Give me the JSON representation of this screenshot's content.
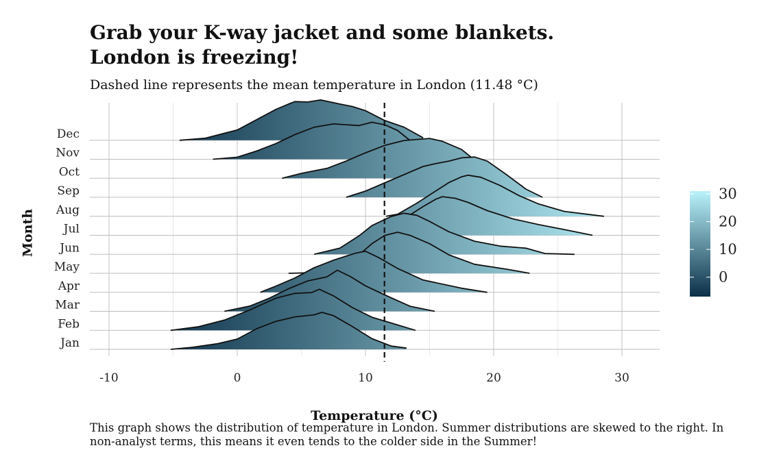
{
  "title_line1": "Grab your K-way jacket and some blankets.",
  "title_line2": "London is freezing!",
  "subtitle": "Dashed line represents the mean temperature in London (11.48 °C)",
  "caption": "This graph shows the distribution of temperature in London. Summer distributions are skewed to the right. In non-analyst terms, this means it even tends to the colder side in the Summer!",
  "chart_data": {
    "type": "ridgeline",
    "title": "Grab your K-way jacket and some blankets. London is freezing!",
    "subtitle": "Dashed line represents the mean temperature in London (11.48 °C)",
    "xlabel": "Temperature (°C)",
    "ylabel": "Month",
    "xlim": [
      -12,
      33
    ],
    "x_ticks": [
      -10,
      0,
      10,
      20,
      30
    ],
    "x_tick_labels": [
      "-10",
      "0",
      "10",
      "20",
      "30"
    ],
    "mean_line": 11.48,
    "grid": true,
    "legend": {
      "position": "right",
      "ticks": [
        0,
        10,
        20,
        30
      ],
      "tick_labels": [
        "0",
        "10",
        "20",
        "30"
      ],
      "range": [
        -7,
        31
      ],
      "colors": [
        "#0b2f47",
        "#b9f3fb"
      ]
    },
    "categories": [
      "Jan",
      "Feb",
      "Mar",
      "Apr",
      "May",
      "Jun",
      "Jul",
      "Aug",
      "Sep",
      "Oct",
      "Nov",
      "Dec"
    ],
    "series": [
      {
        "name": "Jan",
        "density": [
          [
            -5.2,
            0
          ],
          [
            -3.5,
            0.05
          ],
          [
            -1.5,
            0.14
          ],
          [
            0,
            0.25
          ],
          [
            1.5,
            0.5
          ],
          [
            3,
            0.68
          ],
          [
            4.5,
            0.79
          ],
          [
            6,
            0.84
          ],
          [
            6.6,
            0.9
          ],
          [
            7.5,
            0.82
          ],
          [
            9,
            0.55
          ],
          [
            10.5,
            0.26
          ],
          [
            12,
            0.08
          ],
          [
            13.2,
            0.03
          ]
        ]
      },
      {
        "name": "Feb",
        "density": [
          [
            -5.2,
            0
          ],
          [
            -3,
            0.09
          ],
          [
            -1,
            0.25
          ],
          [
            1,
            0.5
          ],
          [
            3,
            0.78
          ],
          [
            4.5,
            0.9
          ],
          [
            5.8,
            0.92
          ],
          [
            6.4,
            1.0
          ],
          [
            7.5,
            0.84
          ],
          [
            9,
            0.55
          ],
          [
            10.5,
            0.32
          ],
          [
            12.5,
            0.13
          ],
          [
            13.9,
            0
          ]
        ]
      },
      {
        "name": "Mar",
        "density": [
          [
            -1,
            0
          ],
          [
            1,
            0.13
          ],
          [
            2.5,
            0.32
          ],
          [
            4,
            0.55
          ],
          [
            5.5,
            0.74
          ],
          [
            7,
            0.84
          ],
          [
            7.8,
            1.0
          ],
          [
            8.8,
            0.85
          ],
          [
            10,
            0.62
          ],
          [
            11.5,
            0.4
          ],
          [
            13.5,
            0.12
          ],
          [
            15.4,
            0
          ]
        ]
      },
      {
        "name": "Apr",
        "density": [
          [
            1.8,
            0
          ],
          [
            3,
            0.15
          ],
          [
            4.5,
            0.35
          ],
          [
            6,
            0.6
          ],
          [
            7.5,
            0.78
          ],
          [
            8.5,
            0.88
          ],
          [
            9.2,
            0.95
          ],
          [
            10,
            1.0
          ],
          [
            11,
            0.85
          ],
          [
            12.5,
            0.58
          ],
          [
            14.5,
            0.3
          ],
          [
            17.5,
            0.1
          ],
          [
            19.5,
            0
          ]
        ]
      },
      {
        "name": "May",
        "density": [
          [
            4,
            0
          ],
          [
            6.5,
            0.02
          ],
          [
            8,
            0.2
          ],
          [
            9.5,
            0.45
          ],
          [
            10.5,
            0.72
          ],
          [
            11.5,
            0.92
          ],
          [
            12.5,
            1.0
          ],
          [
            13.5,
            0.92
          ],
          [
            15,
            0.72
          ],
          [
            16.5,
            0.45
          ],
          [
            18.5,
            0.22
          ],
          [
            21,
            0.1
          ],
          [
            22.8,
            0
          ]
        ]
      },
      {
        "name": "Jun",
        "density": [
          [
            6,
            0
          ],
          [
            8,
            0.15
          ],
          [
            9.5,
            0.45
          ],
          [
            10.5,
            0.7
          ],
          [
            12,
            0.92
          ],
          [
            13,
            1.0
          ],
          [
            14,
            0.95
          ],
          [
            15,
            0.8
          ],
          [
            16.5,
            0.55
          ],
          [
            18.5,
            0.32
          ],
          [
            20.5,
            0.2
          ],
          [
            22.5,
            0.15
          ],
          [
            24,
            0.02
          ],
          [
            26.3,
            0
          ]
        ]
      },
      {
        "name": "Jul",
        "density": [
          [
            10.5,
            0
          ],
          [
            11.5,
            0.1
          ],
          [
            13,
            0.4
          ],
          [
            14.5,
            0.7
          ],
          [
            15.5,
            0.88
          ],
          [
            16,
            0.94
          ],
          [
            17,
            0.9
          ],
          [
            18,
            0.8
          ],
          [
            19.5,
            0.6
          ],
          [
            21.5,
            0.4
          ],
          [
            23.5,
            0.26
          ],
          [
            25.5,
            0.14
          ],
          [
            27.7,
            0
          ]
        ]
      },
      {
        "name": "Aug",
        "density": [
          [
            11.6,
            0
          ],
          [
            12.5,
            0.05
          ],
          [
            14,
            0.32
          ],
          [
            15.5,
            0.62
          ],
          [
            16.5,
            0.82
          ],
          [
            17.5,
            0.96
          ],
          [
            18,
            1.0
          ],
          [
            19,
            0.95
          ],
          [
            20.5,
            0.75
          ],
          [
            22,
            0.5
          ],
          [
            23.5,
            0.3
          ],
          [
            25.5,
            0.12
          ],
          [
            28.6,
            0
          ]
        ]
      },
      {
        "name": "Sep",
        "density": [
          [
            8.5,
            0
          ],
          [
            10,
            0.15
          ],
          [
            11.5,
            0.35
          ],
          [
            13,
            0.55
          ],
          [
            14.5,
            0.75
          ],
          [
            15.5,
            0.82
          ],
          [
            16.5,
            0.88
          ],
          [
            17.5,
            0.96
          ],
          [
            18.5,
            0.98
          ],
          [
            19.5,
            0.88
          ],
          [
            21,
            0.55
          ],
          [
            22.5,
            0.2
          ],
          [
            23.8,
            0
          ]
        ]
      },
      {
        "name": "Oct",
        "density": [
          [
            3.5,
            0
          ],
          [
            5,
            0.12
          ],
          [
            6,
            0.18
          ],
          [
            7,
            0.24
          ],
          [
            8.5,
            0.42
          ],
          [
            10,
            0.62
          ],
          [
            11.5,
            0.8
          ],
          [
            13,
            0.92
          ],
          [
            15,
            0.97
          ],
          [
            16,
            0.9
          ],
          [
            17.5,
            0.7
          ],
          [
            19,
            0.32
          ],
          [
            20.5,
            0.1
          ],
          [
            21.3,
            0
          ]
        ]
      },
      {
        "name": "Nov",
        "density": [
          [
            -1.9,
            0
          ],
          [
            0,
            0.05
          ],
          [
            1.5,
            0.2
          ],
          [
            3,
            0.38
          ],
          [
            4.5,
            0.6
          ],
          [
            6,
            0.78
          ],
          [
            7.5,
            0.86
          ],
          [
            9.5,
            0.82
          ],
          [
            10.5,
            0.9
          ],
          [
            11.5,
            0.84
          ],
          [
            12.5,
            0.7
          ],
          [
            13.5,
            0.45
          ],
          [
            14.5,
            0.2
          ],
          [
            15.5,
            0
          ]
        ]
      },
      {
        "name": "Dec",
        "density": [
          [
            -4.5,
            0
          ],
          [
            -2.5,
            0.05
          ],
          [
            0,
            0.25
          ],
          [
            1.5,
            0.5
          ],
          [
            3,
            0.75
          ],
          [
            4,
            0.88
          ],
          [
            4.5,
            0.94
          ],
          [
            5.5,
            0.93
          ],
          [
            6.5,
            0.98
          ],
          [
            8,
            0.88
          ],
          [
            9,
            0.82
          ],
          [
            10,
            0.72
          ],
          [
            11.5,
            0.48
          ],
          [
            13,
            0.32
          ],
          [
            14.5,
            0.06
          ]
        ]
      }
    ]
  }
}
